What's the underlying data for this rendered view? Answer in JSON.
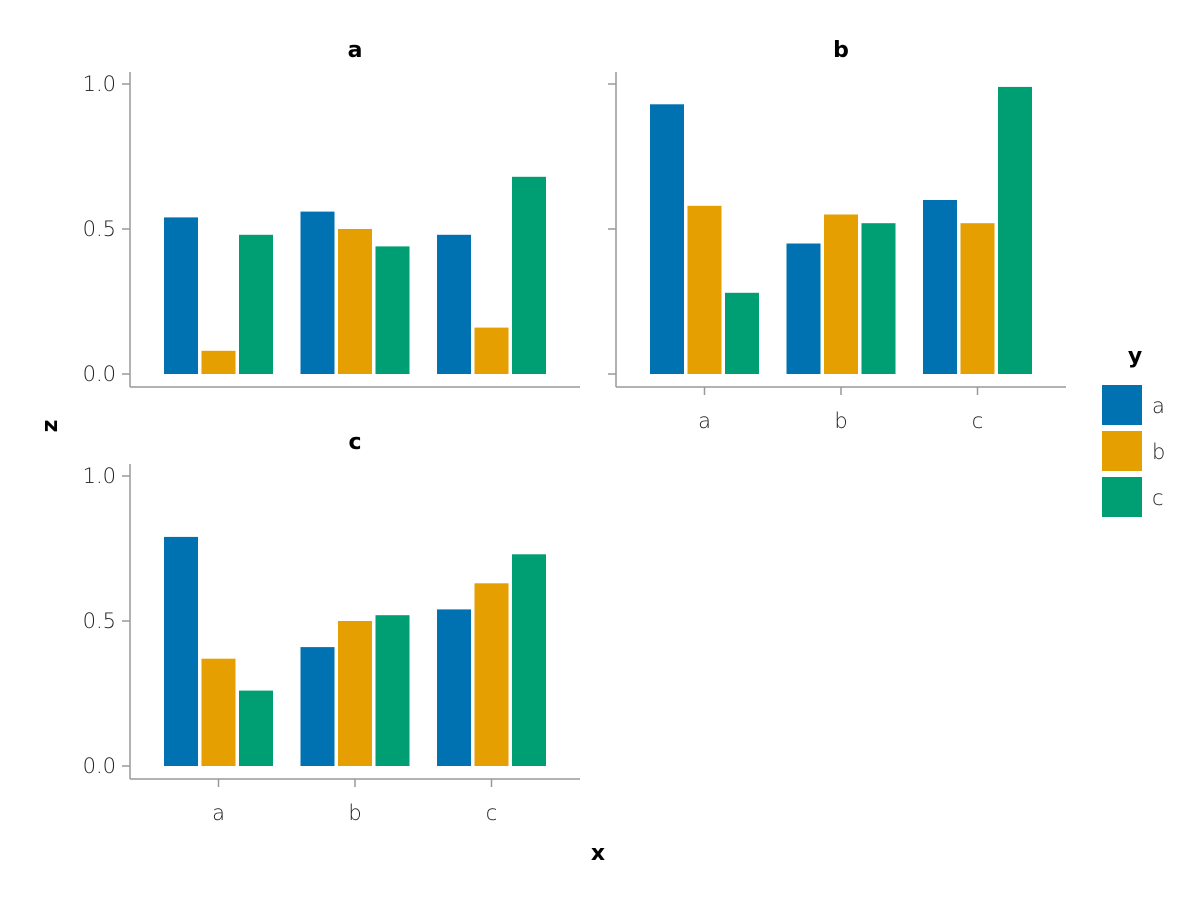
{
  "chart_data": {
    "type": "bar",
    "layout": "faceted grouped bar",
    "xlabel": "x",
    "ylabel": "z",
    "categories": [
      "a",
      "b",
      "c"
    ],
    "ylim": [
      0,
      1
    ],
    "yticks": [
      "0.0",
      "0.5",
      "1.0"
    ],
    "legend": {
      "title": "y",
      "placement": "right",
      "entries": [
        "a",
        "b",
        "c"
      ]
    },
    "colors": {
      "a": "#0072b2",
      "b": "#e69f00",
      "c": "#009e73"
    },
    "grid": false,
    "facets": [
      {
        "title": "a",
        "series": [
          {
            "name": "a",
            "values": [
              0.54,
              0.56,
              0.48
            ]
          },
          {
            "name": "b",
            "values": [
              0.08,
              0.5,
              0.16
            ]
          },
          {
            "name": "c",
            "values": [
              0.48,
              0.44,
              0.68
            ]
          }
        ]
      },
      {
        "title": "b",
        "series": [
          {
            "name": "a",
            "values": [
              0.93,
              0.45,
              0.6
            ]
          },
          {
            "name": "b",
            "values": [
              0.58,
              0.55,
              0.52
            ]
          },
          {
            "name": "c",
            "values": [
              0.28,
              0.52,
              0.99
            ]
          }
        ]
      },
      {
        "title": "c",
        "series": [
          {
            "name": "a",
            "values": [
              0.79,
              0.41,
              0.54
            ]
          },
          {
            "name": "b",
            "values": [
              0.37,
              0.5,
              0.63
            ]
          },
          {
            "name": "c",
            "values": [
              0.26,
              0.52,
              0.73
            ]
          }
        ]
      }
    ]
  }
}
